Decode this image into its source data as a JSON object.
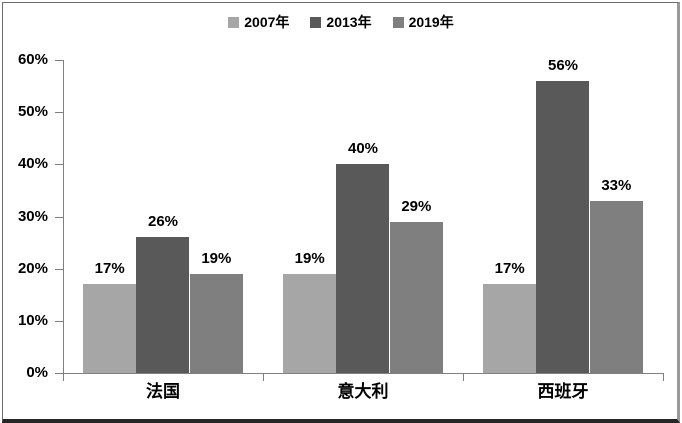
{
  "chart_data": {
    "type": "bar",
    "title": "",
    "categories": [
      "法国",
      "意大利",
      "西班牙"
    ],
    "series": [
      {
        "name": "2007年",
        "color": "#a6a6a6",
        "values": [
          17,
          19,
          17
        ]
      },
      {
        "name": "2013年",
        "color": "#595959",
        "values": [
          26,
          40,
          56
        ]
      },
      {
        "name": "2019年",
        "color": "#7f7f7f",
        "values": [
          19,
          29,
          33
        ]
      }
    ],
    "data_labels": [
      [
        "17%",
        "26%",
        "19%"
      ],
      [
        "19%",
        "40%",
        "29%"
      ],
      [
        "17%",
        "56%",
        "33%"
      ]
    ],
    "xlabel": "",
    "ylabel": "",
    "ylim": [
      0,
      60
    ],
    "yticks": [
      "0%",
      "10%",
      "20%",
      "30%",
      "40%",
      "50%",
      "60%"
    ],
    "grid": false,
    "legend_position": "top",
    "colors": {
      "axis": "#808080",
      "text": "#000000",
      "background": "#ffffff"
    }
  }
}
